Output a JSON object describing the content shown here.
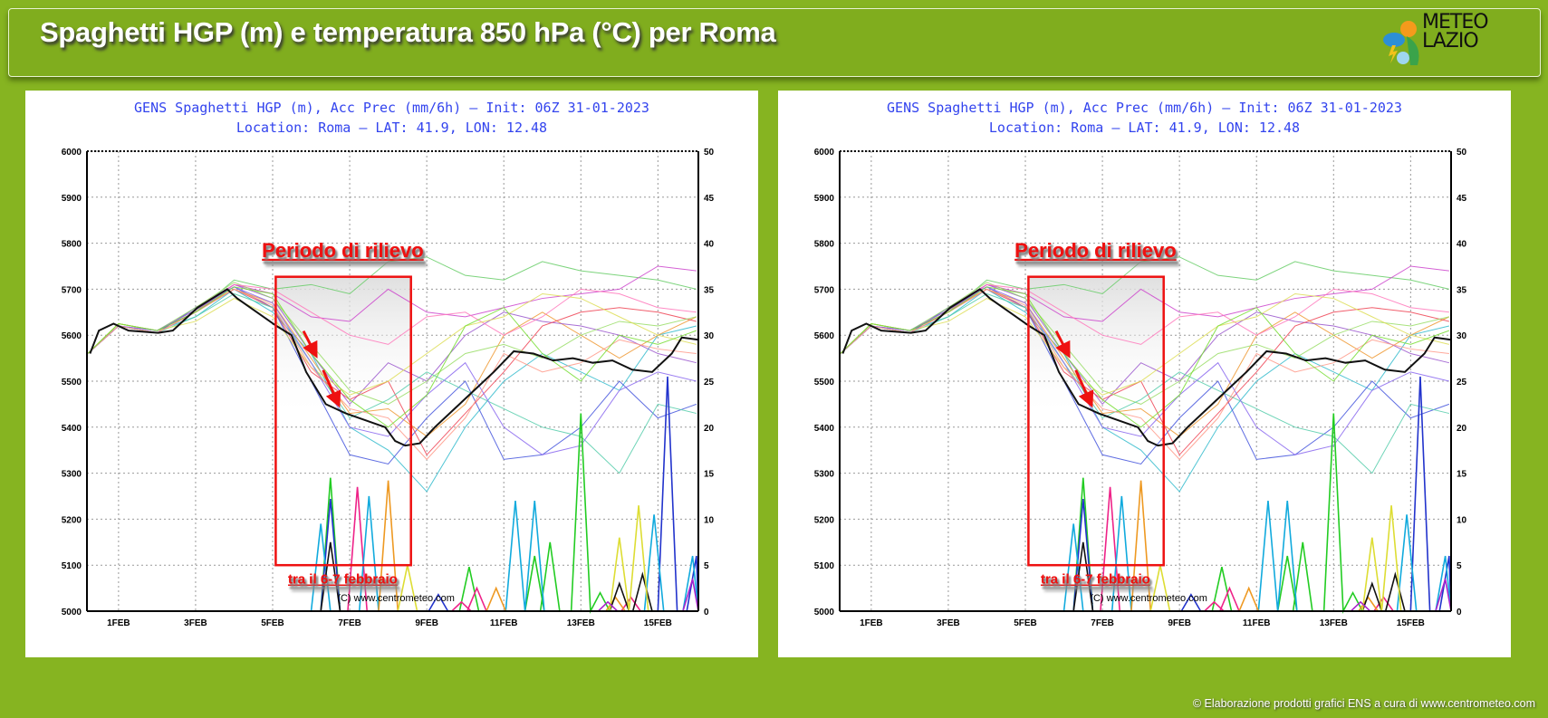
{
  "header": {
    "title": "Spaghetti HGP (m) e temperatura 850 hPa (°C) per Roma"
  },
  "logo": {
    "line1": "METEO",
    "line2": "LAZIO"
  },
  "footer": {
    "text": "©  Elaborazione prodotti grafici ENS a cura di www.centrometeo.com"
  },
  "chart_data": {
    "type": "line",
    "title": "GENS Spaghetti HGP (m), Acc Prec (mm/6h)  –  Init: 06Z 31-01-2023",
    "subtitle": "Location: Roma  –  LAT: 41.9, LON: 12.48",
    "xlabel": "",
    "ylabel": "HGP (m)",
    "y2label": "Acc Prec (mm/6h)",
    "xlim": [
      0.18,
      16.05
    ],
    "ylim": [
      5000,
      6000
    ],
    "y2lim": [
      0,
      50
    ],
    "x_ticks": [
      1,
      3,
      5,
      7,
      9,
      11,
      13,
      15
    ],
    "x_tick_labels": [
      "1FEB",
      "3FEB",
      "5FEB",
      "7FEB",
      "9FEB",
      "11FEB",
      "13FEB",
      "15FEB"
    ],
    "y_ticks": [
      "5000",
      "5100",
      "5200",
      "5300",
      "5400",
      "5500",
      "5600",
      "5700",
      "5800",
      "5900",
      "6000"
    ],
    "y2_ticks": [
      "0",
      "5",
      "10",
      "15",
      "20",
      "25",
      "30",
      "35",
      "40",
      "45",
      "50"
    ],
    "grid": true,
    "watermark": "(C) www.centrometeo.com",
    "control_line": {
      "name": "control",
      "color": "#111111",
      "x": [
        0.26,
        0.49,
        0.87,
        1.26,
        2.03,
        2.41,
        3.05,
        3.82,
        4.08,
        4.59,
        5.1,
        5.49,
        5.87,
        6.38,
        6.9,
        7.41,
        7.92,
        8.18,
        8.44,
        8.82,
        9.21,
        9.72,
        10.23,
        10.74,
        11.26,
        11.77,
        12.28,
        12.79,
        13.31,
        13.82,
        14.33,
        14.85,
        15.36,
        15.62,
        16.05
      ],
      "y": [
        5560,
        5610,
        5625,
        5610,
        5605,
        5610,
        5660,
        5700,
        5680,
        5650,
        5620,
        5600,
        5520,
        5450,
        5430,
        5415,
        5400,
        5370,
        5360,
        5365,
        5400,
        5440,
        5480,
        5520,
        5565,
        5560,
        5545,
        5550,
        5540,
        5545,
        5525,
        5520,
        5560,
        5595,
        5590
      ]
    },
    "members_x": [
      0.2,
      1,
      2,
      3,
      4,
      5,
      6,
      7,
      8,
      9,
      10,
      11,
      12,
      13,
      14,
      15,
      16
    ],
    "members": [
      {
        "color": "#66cc66",
        "y": [
          5560,
          5625,
          5610,
          5650,
          5720,
          5700,
          5710,
          5690,
          5760,
          5770,
          5730,
          5720,
          5760,
          5740,
          5730,
          5720,
          5700
        ]
      },
      {
        "color": "#cc44cc",
        "y": [
          5560,
          5620,
          5605,
          5660,
          5710,
          5690,
          5640,
          5630,
          5700,
          5650,
          5640,
          5660,
          5680,
          5690,
          5700,
          5750,
          5740
        ]
      },
      {
        "color": "#33bbcc",
        "y": [
          5560,
          5625,
          5610,
          5640,
          5700,
          5650,
          5560,
          5400,
          5350,
          5260,
          5400,
          5500,
          5560,
          5520,
          5480,
          5600,
          5620
        ]
      },
      {
        "color": "#4455dd",
        "y": [
          5560,
          5620,
          5605,
          5660,
          5705,
          5660,
          5500,
          5340,
          5320,
          5420,
          5500,
          5330,
          5340,
          5400,
          5500,
          5420,
          5450
        ]
      },
      {
        "color": "#ee9933",
        "y": [
          5560,
          5625,
          5610,
          5655,
          5700,
          5670,
          5550,
          5430,
          5440,
          5380,
          5450,
          5600,
          5650,
          5600,
          5550,
          5600,
          5640
        ]
      },
      {
        "color": "#9955cc",
        "y": [
          5560,
          5620,
          5610,
          5650,
          5710,
          5680,
          5560,
          5450,
          5540,
          5500,
          5600,
          5650,
          5630,
          5620,
          5600,
          5560,
          5540
        ]
      },
      {
        "color": "#ee4455",
        "y": [
          5560,
          5620,
          5605,
          5650,
          5700,
          5660,
          5520,
          5460,
          5500,
          5340,
          5430,
          5520,
          5620,
          5650,
          5660,
          5650,
          5630
        ]
      },
      {
        "color": "#99dd66",
        "y": [
          5560,
          5625,
          5610,
          5660,
          5715,
          5680,
          5580,
          5480,
          5450,
          5500,
          5560,
          5580,
          5550,
          5600,
          5630,
          5620,
          5640
        ]
      },
      {
        "color": "#ff77bb",
        "y": [
          5560,
          5620,
          5605,
          5650,
          5710,
          5700,
          5650,
          5600,
          5580,
          5640,
          5650,
          5600,
          5640,
          5700,
          5690,
          5660,
          5650
        ]
      },
      {
        "color": "#55ccaa",
        "y": [
          5560,
          5620,
          5605,
          5640,
          5690,
          5660,
          5540,
          5420,
          5460,
          5520,
          5480,
          5440,
          5400,
          5380,
          5300,
          5450,
          5430
        ]
      },
      {
        "color": "#dddd55",
        "y": [
          5560,
          5625,
          5610,
          5630,
          5680,
          5640,
          5530,
          5470,
          5500,
          5560,
          5620,
          5640,
          5690,
          5680,
          5640,
          5600,
          5580
        ]
      },
      {
        "color": "#8866ee",
        "y": [
          5560,
          5620,
          5610,
          5655,
          5705,
          5670,
          5540,
          5400,
          5380,
          5470,
          5540,
          5400,
          5340,
          5360,
          5480,
          5520,
          5500
        ]
      },
      {
        "color": "#ff9988",
        "y": [
          5560,
          5620,
          5605,
          5650,
          5700,
          5665,
          5530,
          5440,
          5420,
          5330,
          5420,
          5560,
          5520,
          5540,
          5590,
          5570,
          5560
        ]
      },
      {
        "color": "#77dd33",
        "y": [
          5560,
          5625,
          5610,
          5650,
          5705,
          5690,
          5560,
          5460,
          5400,
          5470,
          5620,
          5660,
          5560,
          5500,
          5600,
          5580,
          5610
        ]
      }
    ],
    "precip": [
      {
        "color": "#22cc22",
        "peaks": [
          [
            6.5,
            14.5
          ],
          [
            10.1,
            4.8
          ],
          [
            11.8,
            6
          ],
          [
            12.2,
            7.5
          ],
          [
            13.0,
            21.5
          ],
          [
            13.5,
            2
          ]
        ]
      },
      {
        "color": "#2233cc",
        "peaks": [
          [
            6.5,
            12.2
          ],
          [
            9.3,
            1.8
          ],
          [
            15.25,
            25.5
          ],
          [
            16.0,
            6
          ]
        ]
      },
      {
        "color": "#ee2288",
        "peaks": [
          [
            7.2,
            13.5
          ],
          [
            9.9,
            1
          ],
          [
            10.3,
            2.5
          ],
          [
            14.3,
            1.5
          ]
        ]
      },
      {
        "color": "#11aadd",
        "peaks": [
          [
            6.25,
            9.5
          ],
          [
            7.5,
            12.5
          ],
          [
            11.3,
            12
          ],
          [
            11.8,
            12
          ],
          [
            14.9,
            10.5
          ],
          [
            15.9,
            6
          ]
        ]
      },
      {
        "color": "#ee9922",
        "peaks": [
          [
            8.0,
            14.2
          ],
          [
            10.8,
            2.5
          ],
          [
            13.9,
            1.5
          ]
        ]
      },
      {
        "color": "#111111",
        "peaks": [
          [
            6.5,
            7.5
          ],
          [
            14.0,
            3
          ],
          [
            14.6,
            4
          ]
        ]
      },
      {
        "color": "#dddd33",
        "peaks": [
          [
            8.5,
            5
          ],
          [
            14.0,
            8
          ],
          [
            14.5,
            11.5
          ]
        ]
      },
      {
        "color": "#aa22cc",
        "peaks": [
          [
            15.9,
            3.5
          ],
          [
            13.7,
            1
          ]
        ]
      }
    ],
    "annotations": {
      "highlight_label": "Periodo di rilievo",
      "period_label": "tra il 6-7 febbraio",
      "box": {
        "x": [
          5.08,
          8.59
        ],
        "y": [
          5100,
          5727
        ]
      },
      "arrows": [
        [
          5.8,
          5609,
          6.1,
          5560
        ],
        [
          6.31,
          5524,
          6.69,
          5453
        ]
      ],
      "color": "#ee1111"
    }
  }
}
